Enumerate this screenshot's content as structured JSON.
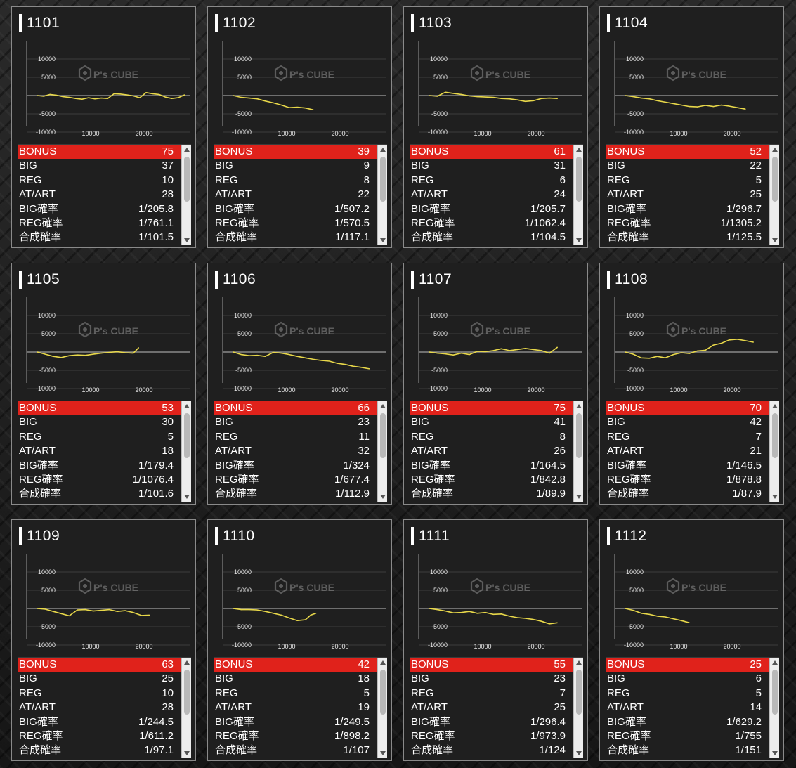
{
  "colors": {
    "accent_red": "#e0221b",
    "line_yellow": "#e8d84a",
    "panel": "#1f1f1f"
  },
  "watermark": "P's CUBE",
  "axis": {
    "y_ticks": [
      "10000",
      "5000",
      "-5000",
      "-10000"
    ],
    "x_ticks": [
      "10000",
      "20000"
    ]
  },
  "labels": [
    "BONUS",
    "BIG",
    "REG",
    "AT/ART",
    "BIG確率",
    "REG確率",
    "合成確率"
  ],
  "machines": [
    {
      "id": "1101",
      "stats": [
        "75",
        "37",
        "10",
        "28",
        "1/205.8",
        "1/761.1",
        "1/101.5"
      ],
      "chart_data": {
        "type": "line",
        "x": [
          0,
          1200,
          2400,
          3600,
          4800,
          6000,
          7200,
          8400,
          9600,
          10800,
          12000,
          13200,
          14400,
          15600,
          16800,
          18000,
          19200,
          20400,
          21600,
          22800,
          24000,
          25200,
          26400,
          27600
        ],
        "y": [
          0,
          -200,
          300,
          100,
          -300,
          -500,
          -800,
          -1000,
          -600,
          -900,
          -700,
          -800,
          500,
          400,
          200,
          -100,
          -600,
          800,
          500,
          300,
          -400,
          -800,
          -600,
          200
        ]
      }
    },
    {
      "id": "1102",
      "stats": [
        "39",
        "9",
        "8",
        "22",
        "1/507.2",
        "1/570.5",
        "1/117.1"
      ],
      "chart_data": {
        "type": "line",
        "x": [
          0,
          1500,
          3000,
          4500,
          6000,
          7500,
          9000,
          10500,
          12000,
          13500,
          15000
        ],
        "y": [
          0,
          -500,
          -700,
          -900,
          -1500,
          -2000,
          -2600,
          -3300,
          -3200,
          -3400,
          -3900
        ]
      }
    },
    {
      "id": "1103",
      "stats": [
        "61",
        "31",
        "6",
        "24",
        "1/205.7",
        "1/1062.4",
        "1/104.5"
      ],
      "chart_data": {
        "type": "line",
        "x": [
          0,
          1500,
          3000,
          4500,
          6000,
          7500,
          9000,
          10500,
          12000,
          13500,
          15000,
          16500,
          18000,
          19500,
          21000,
          22500,
          24000
        ],
        "y": [
          0,
          -200,
          900,
          600,
          300,
          -100,
          -300,
          -400,
          -500,
          -800,
          -900,
          -1200,
          -1600,
          -1400,
          -800,
          -700,
          -800
        ]
      }
    },
    {
      "id": "1104",
      "stats": [
        "52",
        "22",
        "5",
        "25",
        "1/296.7",
        "1/1305.2",
        "1/125.5"
      ],
      "chart_data": {
        "type": "line",
        "x": [
          0,
          1500,
          3000,
          4500,
          6000,
          7500,
          9000,
          10500,
          12000,
          13500,
          15000,
          16500,
          18000,
          19500,
          21000,
          22500
        ],
        "y": [
          0,
          -300,
          -700,
          -900,
          -1400,
          -1800,
          -2200,
          -2600,
          -3000,
          -3100,
          -2700,
          -3000,
          -2600,
          -2900,
          -3300,
          -3700
        ]
      }
    },
    {
      "id": "1105",
      "stats": [
        "53",
        "30",
        "5",
        "18",
        "1/179.4",
        "1/1076.4",
        "1/101.6"
      ],
      "chart_data": {
        "type": "line",
        "x": [
          0,
          1500,
          3000,
          4500,
          6000,
          7500,
          9000,
          10500,
          12000,
          13500,
          15000,
          16500,
          18000,
          19000
        ],
        "y": [
          0,
          -600,
          -1200,
          -1500,
          -1000,
          -800,
          -900,
          -600,
          -300,
          -100,
          100,
          -200,
          -300,
          1200
        ]
      }
    },
    {
      "id": "1106",
      "stats": [
        "66",
        "23",
        "11",
        "32",
        "1/324",
        "1/677.4",
        "1/112.9"
      ],
      "chart_data": {
        "type": "line",
        "x": [
          0,
          1500,
          3000,
          4500,
          6000,
          7500,
          9000,
          10500,
          12000,
          13500,
          15000,
          16500,
          18000,
          19500,
          21000,
          22500,
          24000,
          25500
        ],
        "y": [
          0,
          -700,
          -1000,
          -900,
          -1200,
          -100,
          -300,
          -700,
          -1200,
          -1600,
          -2000,
          -2300,
          -2500,
          -3100,
          -3400,
          -3900,
          -4200,
          -4600
        ]
      }
    },
    {
      "id": "1107",
      "stats": [
        "75",
        "41",
        "8",
        "26",
        "1/164.5",
        "1/842.8",
        "1/89.9"
      ],
      "chart_data": {
        "type": "line",
        "x": [
          0,
          1500,
          3000,
          4500,
          6000,
          7500,
          9000,
          10500,
          12000,
          13500,
          15000,
          16500,
          18000,
          19500,
          21000,
          22500,
          24000
        ],
        "y": [
          0,
          -300,
          -500,
          -800,
          -300,
          -700,
          200,
          100,
          400,
          900,
          400,
          700,
          1000,
          700,
          400,
          -300,
          1300
        ]
      }
    },
    {
      "id": "1108",
      "stats": [
        "70",
        "42",
        "7",
        "21",
        "1/146.5",
        "1/878.8",
        "1/87.9"
      ],
      "chart_data": {
        "type": "line",
        "x": [
          0,
          1500,
          3000,
          4500,
          6000,
          7500,
          9000,
          10500,
          12000,
          13500,
          15000,
          16500,
          18000,
          19500,
          21000,
          22500,
          24000
        ],
        "y": [
          0,
          -600,
          -1600,
          -1700,
          -1200,
          -1600,
          -700,
          -200,
          -400,
          300,
          500,
          1900,
          2400,
          3300,
          3500,
          3100,
          2700
        ]
      }
    },
    {
      "id": "1109",
      "stats": [
        "63",
        "25",
        "10",
        "28",
        "1/244.5",
        "1/611.2",
        "1/97.1"
      ],
      "chart_data": {
        "type": "line",
        "x": [
          0,
          1500,
          3000,
          4500,
          6000,
          7500,
          9000,
          10500,
          12000,
          13500,
          15000,
          16500,
          18000,
          19500,
          21000
        ],
        "y": [
          0,
          -200,
          -800,
          -1400,
          -2000,
          -400,
          -300,
          -700,
          -500,
          -300,
          -800,
          -600,
          -1100,
          -1900,
          -1800
        ]
      }
    },
    {
      "id": "1110",
      "stats": [
        "42",
        "18",
        "5",
        "19",
        "1/249.5",
        "1/898.2",
        "1/107"
      ],
      "chart_data": {
        "type": "line",
        "x": [
          0,
          1500,
          3000,
          4500,
          6000,
          7500,
          9000,
          10500,
          12000,
          13500,
          14500,
          15500
        ],
        "y": [
          0,
          -300,
          -300,
          -400,
          -800,
          -1300,
          -1800,
          -2600,
          -3300,
          -3100,
          -1800,
          -1300
        ]
      }
    },
    {
      "id": "1111",
      "stats": [
        "55",
        "23",
        "7",
        "25",
        "1/296.4",
        "1/973.9",
        "1/124"
      ],
      "chart_data": {
        "type": "line",
        "x": [
          0,
          1500,
          3000,
          4500,
          6000,
          7500,
          9000,
          10500,
          12000,
          13500,
          15000,
          16500,
          18000,
          19500,
          21000,
          22500,
          24000
        ],
        "y": [
          0,
          -300,
          -700,
          -1200,
          -1100,
          -800,
          -1300,
          -1100,
          -1600,
          -1500,
          -2100,
          -2500,
          -2700,
          -3000,
          -3500,
          -4200,
          -3900
        ]
      }
    },
    {
      "id": "1112",
      "stats": [
        "25",
        "6",
        "5",
        "14",
        "1/629.2",
        "1/755",
        "1/151"
      ],
      "chart_data": {
        "type": "line",
        "x": [
          0,
          1500,
          3000,
          4500,
          6000,
          7500,
          9000,
          10500,
          12000
        ],
        "y": [
          0,
          -500,
          -1300,
          -1600,
          -2100,
          -2300,
          -2800,
          -3300,
          -3900
        ]
      }
    }
  ]
}
